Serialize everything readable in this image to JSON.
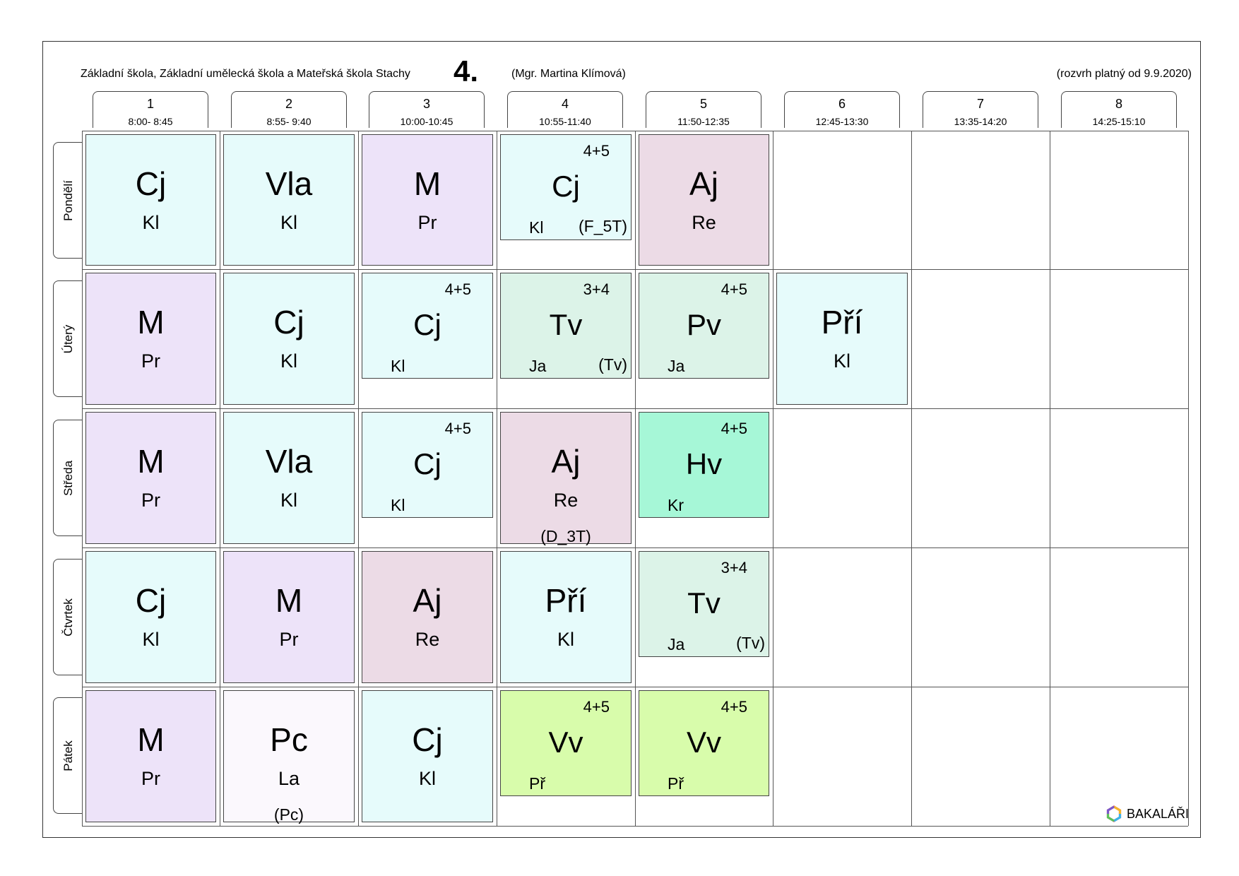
{
  "header": {
    "school": "Základní škola, Základní umělecká škola a Mateřská škola Stachy",
    "class": "4.",
    "teacher": "(Mgr. Martina Klímová)",
    "valid": "(rozvrh platný od 9.9.2020)"
  },
  "periods": [
    {
      "num": "1",
      "time": "8:00- 8:45"
    },
    {
      "num": "2",
      "time": "8:55- 9:40"
    },
    {
      "num": "3",
      "time": "10:00-10:45"
    },
    {
      "num": "4",
      "time": "10:55-11:40"
    },
    {
      "num": "5",
      "time": "11:50-12:35"
    },
    {
      "num": "6",
      "time": "12:45-13:30"
    },
    {
      "num": "7",
      "time": "13:35-14:20"
    },
    {
      "num": "8",
      "time": "14:25-15:10"
    }
  ],
  "days": [
    "Pondělí",
    "Úterý",
    "Středa",
    "Čtvrtek",
    "Pátek"
  ],
  "lessons": [
    {
      "day": 0,
      "period": 0,
      "subject": "Cj",
      "teacher": "Kl",
      "color": "cj"
    },
    {
      "day": 0,
      "period": 1,
      "subject": "Vla",
      "teacher": "Kl",
      "color": "cj"
    },
    {
      "day": 0,
      "period": 2,
      "subject": "M",
      "teacher": "Pr",
      "color": "m"
    },
    {
      "day": 0,
      "period": 3,
      "subject": "Cj",
      "teacher": "Kl",
      "group": "4+5",
      "room": "(F_5T)",
      "color": "cj"
    },
    {
      "day": 0,
      "period": 4,
      "subject": "Aj",
      "teacher": "Re",
      "color": "aj"
    },
    {
      "day": 1,
      "period": 0,
      "subject": "M",
      "teacher": "Pr",
      "color": "m"
    },
    {
      "day": 1,
      "period": 1,
      "subject": "Cj",
      "teacher": "Kl",
      "color": "cj"
    },
    {
      "day": 1,
      "period": 2,
      "subject": "Cj",
      "teacher": "Kl",
      "group": "4+5",
      "color": "cj"
    },
    {
      "day": 1,
      "period": 3,
      "subject": "Tv",
      "teacher": "Ja",
      "group": "3+4",
      "room": "(Tv)",
      "color": "tv"
    },
    {
      "day": 1,
      "period": 4,
      "subject": "Pv",
      "teacher": "Ja",
      "group": "4+5",
      "color": "tv"
    },
    {
      "day": 1,
      "period": 5,
      "subject": "Pří",
      "teacher": "Kl",
      "color": "cj"
    },
    {
      "day": 2,
      "period": 0,
      "subject": "M",
      "teacher": "Pr",
      "color": "m"
    },
    {
      "day": 2,
      "period": 1,
      "subject": "Vla",
      "teacher": "Kl",
      "color": "cj"
    },
    {
      "day": 2,
      "period": 2,
      "subject": "Cj",
      "teacher": "Kl",
      "group": "4+5",
      "color": "cj"
    },
    {
      "day": 2,
      "period": 3,
      "subject": "Aj",
      "teacher": "Re",
      "room": "(D_3T)",
      "color": "aj"
    },
    {
      "day": 2,
      "period": 4,
      "subject": "Hv",
      "teacher": "Kr",
      "group": "4+5",
      "color": "hv"
    },
    {
      "day": 3,
      "period": 0,
      "subject": "Cj",
      "teacher": "Kl",
      "color": "cj"
    },
    {
      "day": 3,
      "period": 1,
      "subject": "M",
      "teacher": "Pr",
      "color": "m"
    },
    {
      "day": 3,
      "period": 2,
      "subject": "Aj",
      "teacher": "Re",
      "color": "aj"
    },
    {
      "day": 3,
      "period": 3,
      "subject": "Pří",
      "teacher": "Kl",
      "color": "cj"
    },
    {
      "day": 3,
      "period": 4,
      "subject": "Tv",
      "teacher": "Ja",
      "group": "3+4",
      "room": "(Tv)",
      "color": "tv"
    },
    {
      "day": 4,
      "period": 0,
      "subject": "M",
      "teacher": "Pr",
      "color": "m"
    },
    {
      "day": 4,
      "period": 1,
      "subject": "Pc",
      "teacher": "La",
      "room": "(Pc)",
      "color": "pc"
    },
    {
      "day": 4,
      "period": 2,
      "subject": "Cj",
      "teacher": "Kl",
      "color": "cj"
    },
    {
      "day": 4,
      "period": 3,
      "subject": "Vv",
      "teacher": "Př",
      "group": "4+5",
      "color": "vv"
    },
    {
      "day": 4,
      "period": 4,
      "subject": "Vv",
      "teacher": "Př",
      "group": "4+5",
      "color": "vv"
    }
  ],
  "colors": {
    "cj": "#e6fbfb",
    "m": "#ede3f9",
    "aj": "#ecdbe6",
    "tv": "#dcf3e8",
    "hv": "#a6f7d7",
    "vv": "#d8fcab",
    "pc": "#fbf8fd"
  },
  "logo": {
    "icon": "bakalari-logo-icon",
    "text": "BAKALÁŘI"
  }
}
